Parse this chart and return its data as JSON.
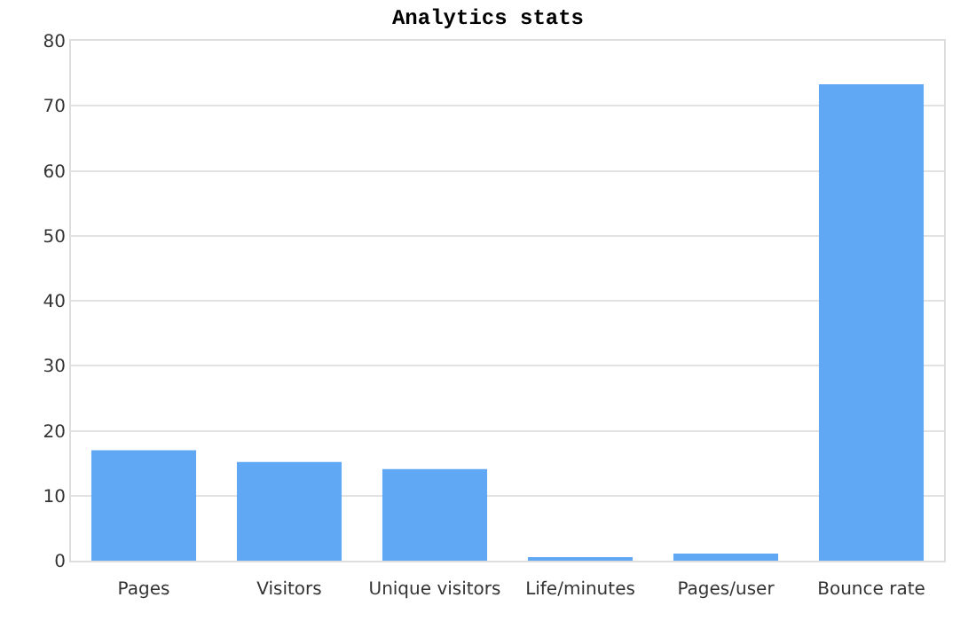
{
  "chart_data": {
    "type": "bar",
    "title": "Analytics stats",
    "categories": [
      "Pages",
      "Visitors",
      "Unique visitors",
      "Life/minutes",
      "Pages/user",
      "Bounce rate"
    ],
    "values": [
      17,
      15.2,
      14.1,
      0.3,
      1.1,
      73.3
    ],
    "color": "#60a8f4",
    "ylim": [
      0,
      80
    ],
    "yticks": [
      0,
      10,
      20,
      30,
      40,
      50,
      60,
      70,
      80
    ],
    "grid": "y"
  }
}
